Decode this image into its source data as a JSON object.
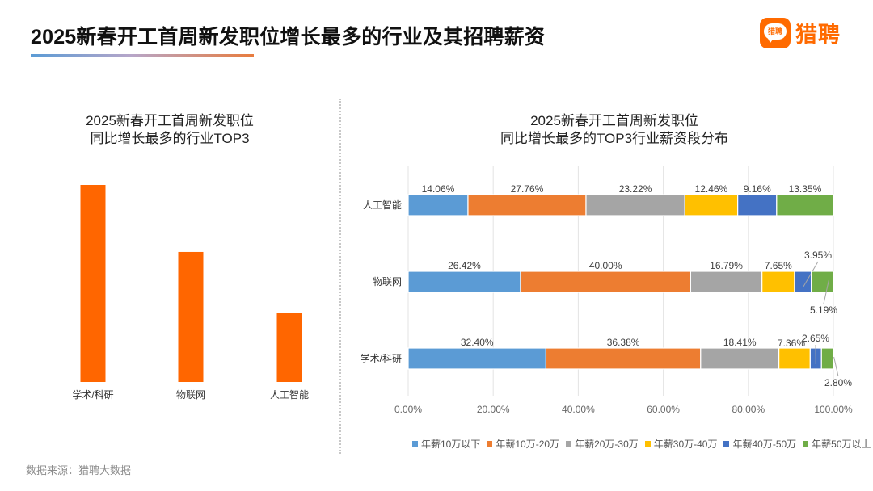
{
  "header": {
    "title": "2025新春开工首周新发职位增长最多的行业及其招聘薪资",
    "logo_badge_text": "猎聘",
    "logo_text": "猎聘",
    "brand_color": "#ff6a00"
  },
  "footer": {
    "source": "数据来源：猎聘大数据"
  },
  "chart_data": [
    {
      "type": "bar",
      "title_line1": "2025新春开工首周新发职位",
      "title_line2": "同比增长最多的行业TOP3",
      "categories": [
        "学术/科研",
        "物联网",
        "人工智能"
      ],
      "values": [
        100,
        66,
        35
      ],
      "value_note": "relative heights only; no axis or data labels shown",
      "color": "#ff6600",
      "xlabel": "",
      "ylabel": "",
      "grid": false,
      "legend": "none"
    },
    {
      "type": "bar",
      "orientation": "horizontal-stacked-100",
      "title_line1": "2025新春开工首周新发职位",
      "title_line2": "同比增长最多的TOP3行业薪资段分布",
      "categories": [
        "人工智能",
        "物联网",
        "学术/科研"
      ],
      "series": [
        {
          "name": "年薪10万以下",
          "color": "#5b9bd5",
          "values": [
            14.06,
            26.42,
            32.4
          ],
          "labels": [
            "14.06%",
            "26.42%",
            "32.40%"
          ]
        },
        {
          "name": "年薪10万-20万",
          "color": "#ed7d31",
          "values": [
            27.76,
            40.0,
            36.38
          ],
          "labels": [
            "27.76%",
            "40.00%",
            "36.38%"
          ]
        },
        {
          "name": "年薪20万-30万",
          "color": "#a5a5a5",
          "values": [
            23.22,
            16.79,
            18.41
          ],
          "labels": [
            "23.22%",
            "16.79%",
            "18.41%"
          ]
        },
        {
          "name": "年薪30万-40万",
          "color": "#ffc000",
          "values": [
            12.46,
            7.65,
            7.36
          ],
          "labels": [
            "12.46%",
            "7.65%",
            "7.36%"
          ]
        },
        {
          "name": "年薪40万-50万",
          "color": "#4472c4",
          "values": [
            9.16,
            3.95,
            2.65
          ],
          "labels": [
            "9.16%",
            "3.95%",
            "2.65%"
          ]
        },
        {
          "name": "年薪50万以上",
          "color": "#70ad47",
          "values": [
            13.35,
            5.19,
            2.8
          ],
          "labels": [
            "13.35%",
            "5.19%",
            "2.80%"
          ]
        }
      ],
      "xlim": [
        0,
        100
      ],
      "xticks": [
        "0.00%",
        "20.00%",
        "40.00%",
        "60.00%",
        "80.00%",
        "100.00%"
      ],
      "grid": true,
      "legend": "bottom"
    }
  ]
}
